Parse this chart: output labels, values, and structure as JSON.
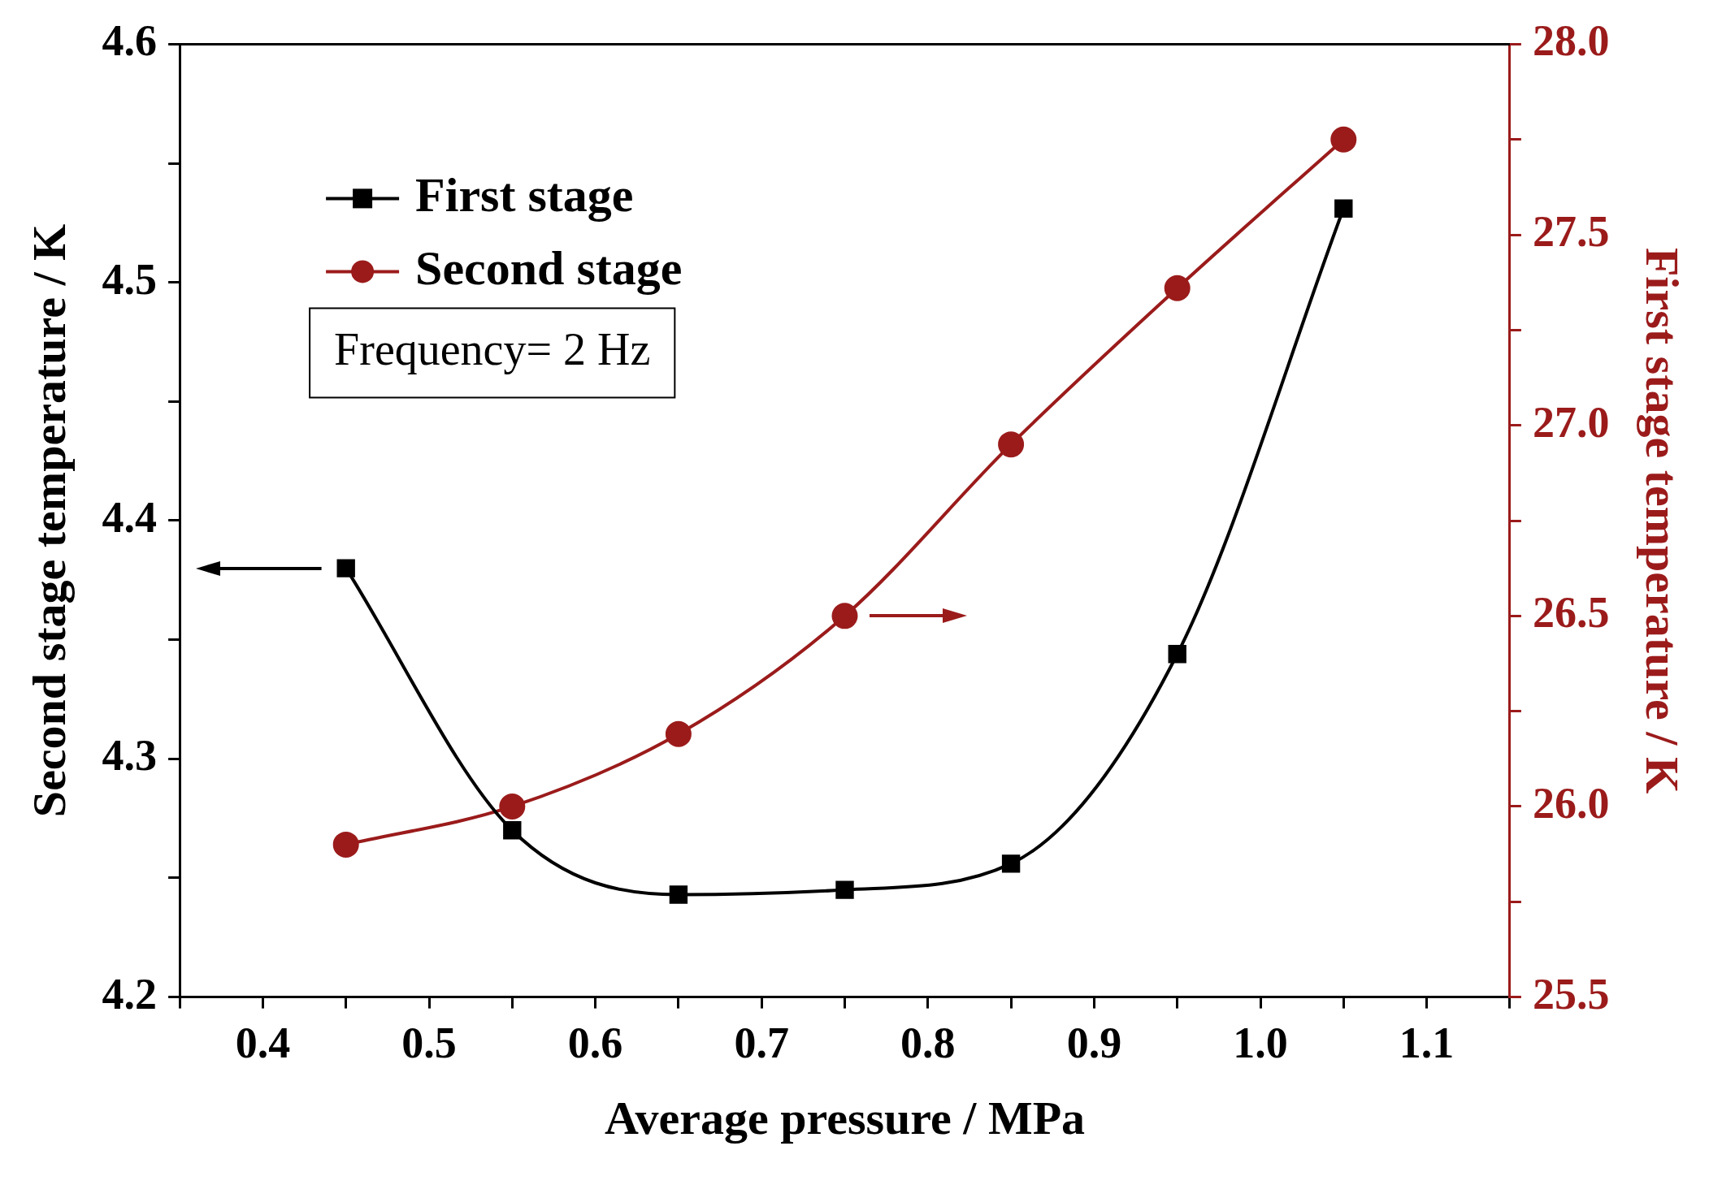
{
  "chart_data": {
    "type": "line",
    "xlabel": "Average pressure / MPa",
    "ylabel": "Second stage temperature / K",
    "y2label": "First stage temperature / K",
    "x": [
      0.45,
      0.55,
      0.65,
      0.75,
      0.85,
      0.95,
      1.05
    ],
    "series": [
      {
        "name": "First stage",
        "color": "#000000",
        "marker": "square",
        "values": [
          4.38,
          4.27,
          4.243,
          4.245,
          4.256,
          4.344,
          4.531
        ]
      },
      {
        "name": "Second stage",
        "color": "#9b1b1b",
        "marker": "circle",
        "axis": "y2",
        "values": [
          25.9,
          26.0,
          26.19,
          26.5,
          26.95,
          27.36,
          27.75
        ]
      }
    ],
    "xlim": [
      0.35,
      1.15
    ],
    "xticks": [
      {
        "value": 0.35,
        "label": null
      },
      0.4,
      {
        "value": 0.45,
        "label": null
      },
      0.5,
      {
        "value": 0.55,
        "label": null
      },
      0.6,
      {
        "value": 0.65,
        "label": null
      },
      0.7,
      {
        "value": 0.75,
        "label": null
      },
      0.8,
      {
        "value": 0.85,
        "label": null
      },
      0.9,
      {
        "value": 0.95,
        "label": null
      },
      {
        "value": 1.0,
        "label": "1.0"
      },
      {
        "value": 1.05,
        "label": null
      },
      1.1,
      {
        "value": 1.15,
        "label": null
      }
    ],
    "ylim": [
      4.2,
      4.6
    ],
    "yticks": [
      4.2,
      {
        "value": 4.25,
        "label": null
      },
      4.3,
      {
        "value": 4.35,
        "label": null
      },
      4.4,
      {
        "value": 4.45,
        "label": null
      },
      4.5,
      {
        "value": 4.55,
        "label": null
      },
      4.6
    ],
    "y2lim": [
      25.5,
      28.0
    ],
    "y2ticks": [
      25.5,
      {
        "value": 25.75,
        "label": null
      },
      {
        "value": 26.0,
        "label": "26.0"
      },
      {
        "value": 26.25,
        "label": null
      },
      26.5,
      {
        "value": 26.75,
        "label": null
      },
      {
        "value": 27.0,
        "label": "27.0"
      },
      {
        "value": 27.25,
        "label": null
      },
      27.5,
      {
        "value": 27.75,
        "label": null
      },
      {
        "value": 28.0,
        "label": "28.0"
      }
    ],
    "annotations": [
      "Frequency= 2 Hz"
    ],
    "legend": "top left",
    "grid": false,
    "line_style": "solid"
  }
}
